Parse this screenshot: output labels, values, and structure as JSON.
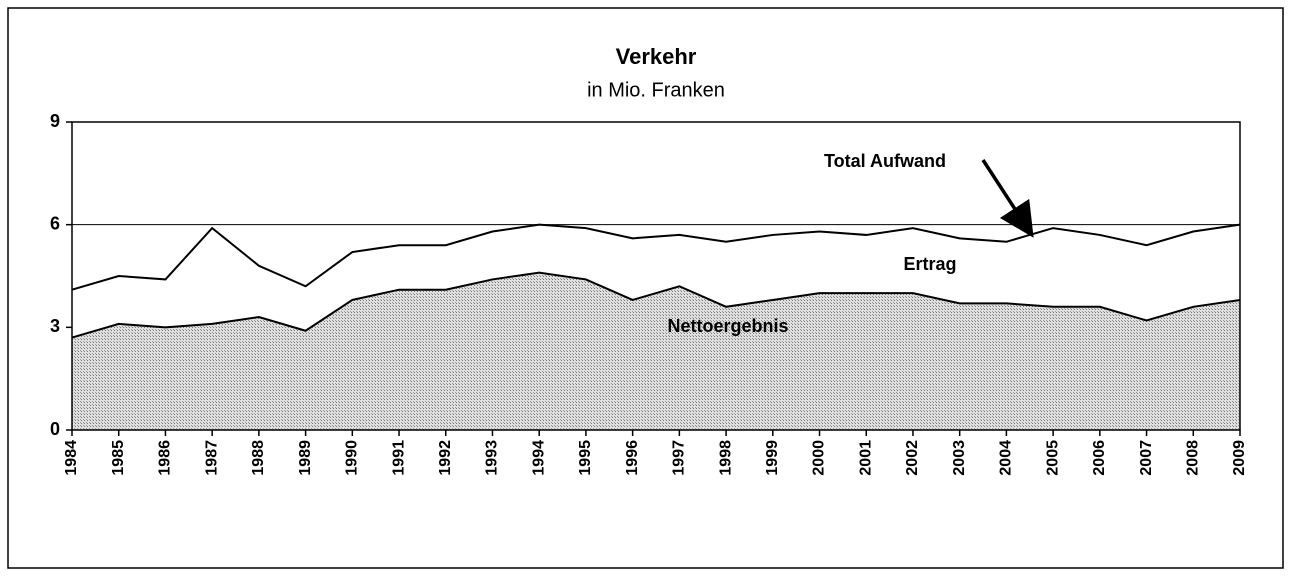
{
  "chart_data": {
    "type": "area",
    "title": "Verkehr",
    "subtitle": "in Mio. Franken",
    "categories": [
      "1984",
      "1985",
      "1986",
      "1987",
      "1988",
      "1989",
      "1990",
      "1991",
      "1992",
      "1993",
      "1994",
      "1995",
      "1996",
      "1997",
      "1998",
      "1999",
      "2000",
      "2001",
      "2002",
      "2003",
      "2004",
      "2005",
      "2006",
      "2007",
      "2008",
      "2009"
    ],
    "series": [
      {
        "name": "Total Aufwand",
        "color": "#ffffff",
        "values": [
          4.1,
          4.5,
          4.4,
          5.9,
          4.8,
          4.2,
          5.2,
          5.4,
          5.4,
          5.8,
          6.0,
          5.9,
          5.6,
          5.7,
          5.5,
          5.7,
          5.8,
          5.7,
          5.9,
          5.6,
          5.5,
          5.9,
          5.7,
          5.4,
          5.8,
          6.0
        ]
      },
      {
        "name": "Nettoergebnis",
        "color": "#b8b8b8",
        "values": [
          2.7,
          3.1,
          3.0,
          3.1,
          3.3,
          2.9,
          3.8,
          4.1,
          4.1,
          4.4,
          4.6,
          4.4,
          3.8,
          4.2,
          3.6,
          3.8,
          4.0,
          4.0,
          4.0,
          3.7,
          3.7,
          3.6,
          3.6,
          3.2,
          3.6,
          3.8
        ]
      }
    ],
    "annotations": [
      "Ertrag"
    ],
    "ylim": [
      0,
      9
    ],
    "yticks": [
      0,
      3,
      6,
      9
    ],
    "grid": true
  }
}
